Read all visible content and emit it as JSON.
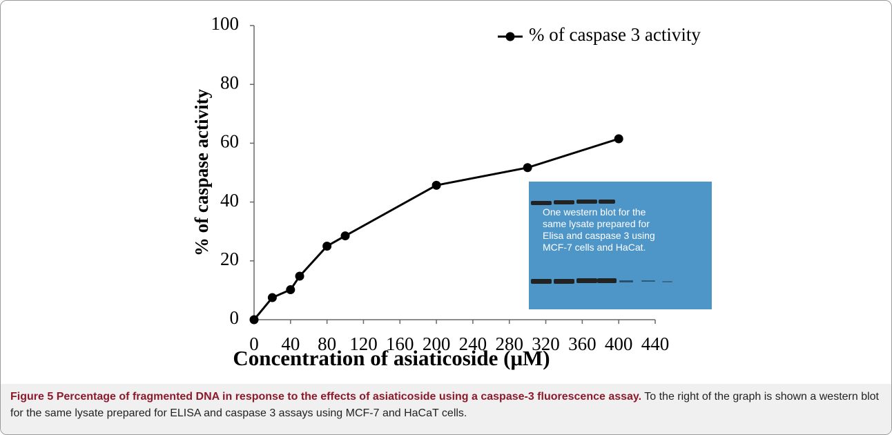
{
  "chart_data": {
    "type": "line",
    "x": [
      0,
      20,
      40,
      50,
      80,
      100,
      200,
      300,
      400
    ],
    "series": [
      {
        "name": "% of caspase 3 activity",
        "color": "#000000",
        "values": [
          0,
          7.5,
          10.2,
          14.8,
          25,
          28.5,
          45.7,
          51.7,
          61.5
        ]
      }
    ],
    "xlabel": "Concentration of asiaticoside (μM)",
    "ylabel": "% of caspase activity",
    "xlim": [
      0,
      440
    ],
    "xticks": [
      0,
      40,
      80,
      120,
      160,
      200,
      240,
      280,
      320,
      360,
      400,
      440
    ],
    "ylim": [
      0,
      100
    ],
    "yticks": [
      0,
      20,
      40,
      60,
      80,
      100
    ],
    "grid": false,
    "legend": "upper right",
    "annotation": "One western blot for the same lysate prepared for Elisa and caspase 3 using MCF-7 cells and HaCat."
  },
  "caption": {
    "label": "Figure 5",
    "title": "Percentage of fragmented DNA in response to the effects of asiaticoside using a caspase-3 fluorescence assay.",
    "text": "To the right of the graph is shown a western blot for the same lysate prepared for ELISA and caspase 3 assays using MCF-7 and HaCaT cells."
  }
}
